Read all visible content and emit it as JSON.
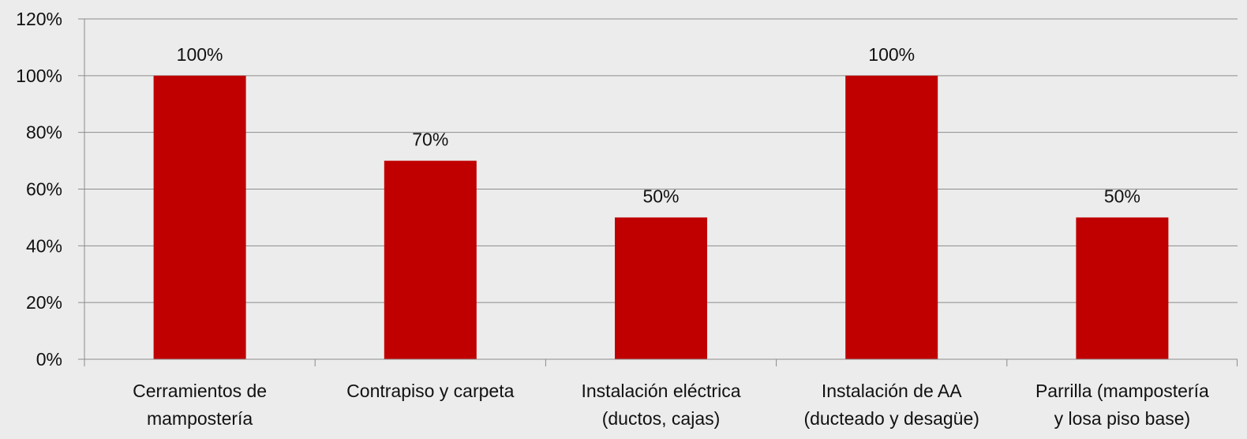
{
  "colors": {
    "background": "#ececec",
    "bar": "#c00000",
    "gridline": "#8c8c8c",
    "axis": "#8c8c8c",
    "text": "#111111"
  },
  "chart_data": {
    "type": "bar",
    "title": "",
    "xlabel": "",
    "ylabel": "",
    "categories": [
      [
        "Cerramientos de",
        "mampostería"
      ],
      [
        "Contrapiso y carpeta"
      ],
      [
        "Instalación eléctrica",
        "(ductos, cajas)"
      ],
      [
        "Instalación de AA",
        "(ducteado y desagüe)"
      ],
      [
        "Parrilla (mampostería",
        "y losa piso base)"
      ]
    ],
    "values": [
      100,
      70,
      50,
      100,
      50
    ],
    "data_labels": [
      "100%",
      "70%",
      "50%",
      "100%",
      "50%"
    ],
    "ylim": [
      0,
      120
    ],
    "yticks": [
      0,
      20,
      40,
      60,
      80,
      100,
      120
    ],
    "ytick_labels": [
      "0%",
      "20%",
      "40%",
      "60%",
      "80%",
      "100%",
      "120%"
    ],
    "grid": true,
    "legend": "none"
  }
}
